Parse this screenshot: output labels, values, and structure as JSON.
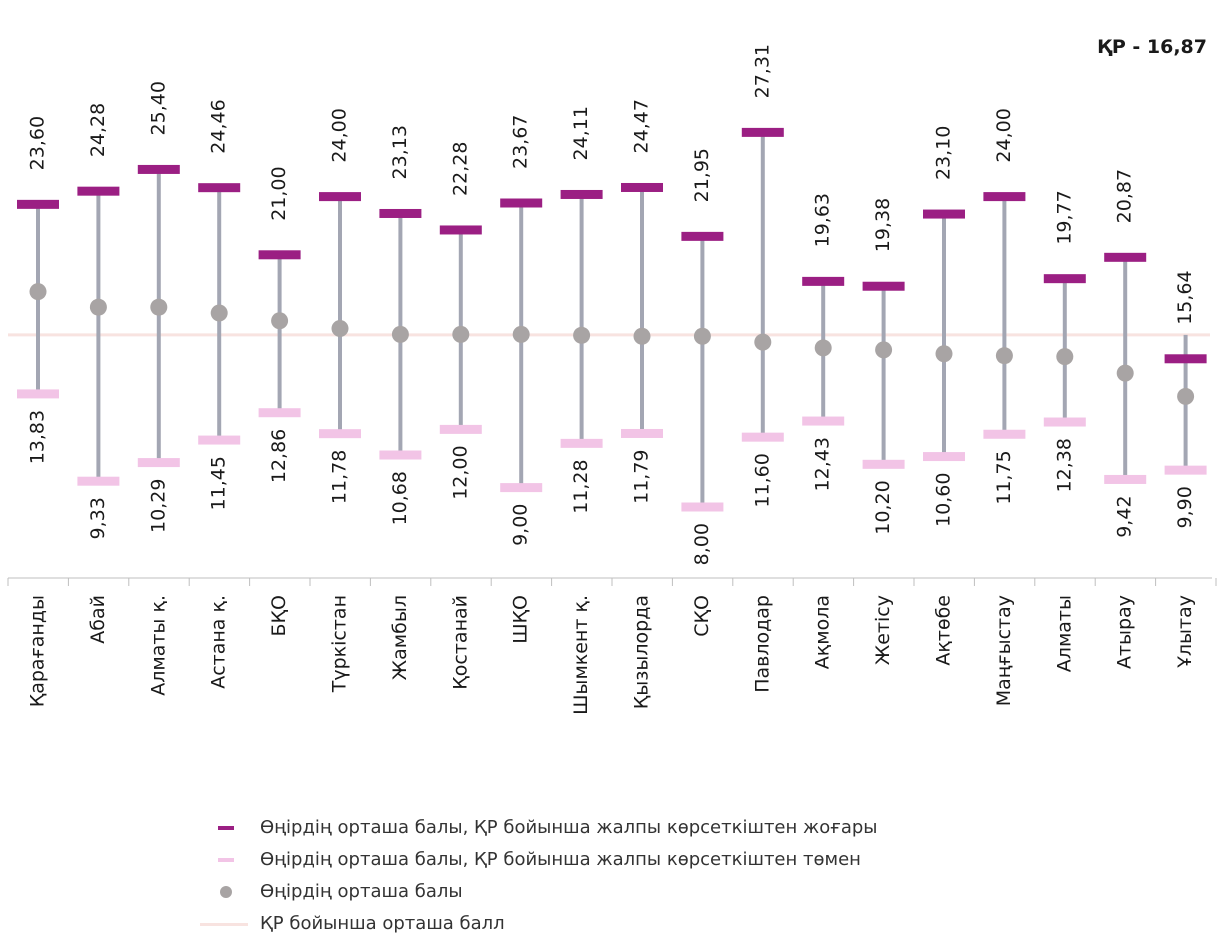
{
  "chart_data": {
    "type": "error-bar",
    "kr_label": "ҚР - 16,87",
    "kr_average": 16.87,
    "categories": [
      "Қарағанды",
      "Абай",
      "Алматы қ.",
      "Астана қ.",
      "БҚО",
      "Түркістан",
      "Жамбыл",
      "Қостанай",
      "ШҚО",
      "Шымкент қ.",
      "Қызылорда",
      "СҚО",
      "Павлодар",
      "Ақмола",
      "Жетісу",
      "Ақтөбе",
      "Маңғыстау",
      "Алматы",
      "Атырау",
      "Ұлытау"
    ],
    "max_values": [
      23.6,
      24.28,
      25.4,
      24.46,
      21.0,
      24.0,
      23.13,
      22.28,
      23.67,
      24.11,
      24.47,
      21.95,
      27.31,
      19.63,
      19.38,
      23.1,
      24.0,
      19.77,
      20.87,
      15.64
    ],
    "max_labels": [
      "23,60",
      "24,28",
      "25,40",
      "24,46",
      "21,00",
      "24,00",
      "23,13",
      "22,28",
      "23,67",
      "24,11",
      "24,47",
      "21,95",
      "27,31",
      "19,63",
      "19,38",
      "23,10",
      "24,00",
      "19,77",
      "20,87",
      "15,64"
    ],
    "min_values": [
      13.83,
      9.33,
      10.29,
      11.45,
      12.86,
      11.78,
      10.68,
      12.0,
      9.0,
      11.28,
      11.79,
      8.0,
      11.6,
      12.43,
      10.2,
      10.6,
      11.75,
      12.38,
      9.42,
      9.9
    ],
    "min_labels": [
      "13,83",
      "9,33",
      "10,29",
      "11,45",
      "12,86",
      "11,78",
      "10,68",
      "12,00",
      "9,00",
      "11,28",
      "11,79",
      "8,00",
      "11,60",
      "12,43",
      "10,20",
      "10,60",
      "11,75",
      "12,38",
      "9,42",
      "9,90"
    ],
    "mean_values": [
      19.1,
      18.3,
      18.3,
      18.0,
      17.6,
      17.2,
      16.9,
      16.9,
      16.9,
      16.85,
      16.8,
      16.8,
      16.5,
      16.2,
      16.1,
      15.9,
      15.8,
      15.75,
      14.9,
      13.7
    ],
    "legend": [
      "Өңірдің орташа балы, ҚР бойынша жалпы көрсеткіштен жоғары",
      "Өңірдің орташа балы, ҚР бойынша жалпы көрсеткіштен төмен",
      "Өңірдің орташа балы",
      "ҚР бойынша орташа балл"
    ],
    "colors": {
      "high": "#9b1f83",
      "low": "#f2c4e6",
      "mean": "#a8a4a4",
      "line": "#a3a6b3",
      "average": "#f8e3e0",
      "text": "#1a1a1a"
    }
  }
}
